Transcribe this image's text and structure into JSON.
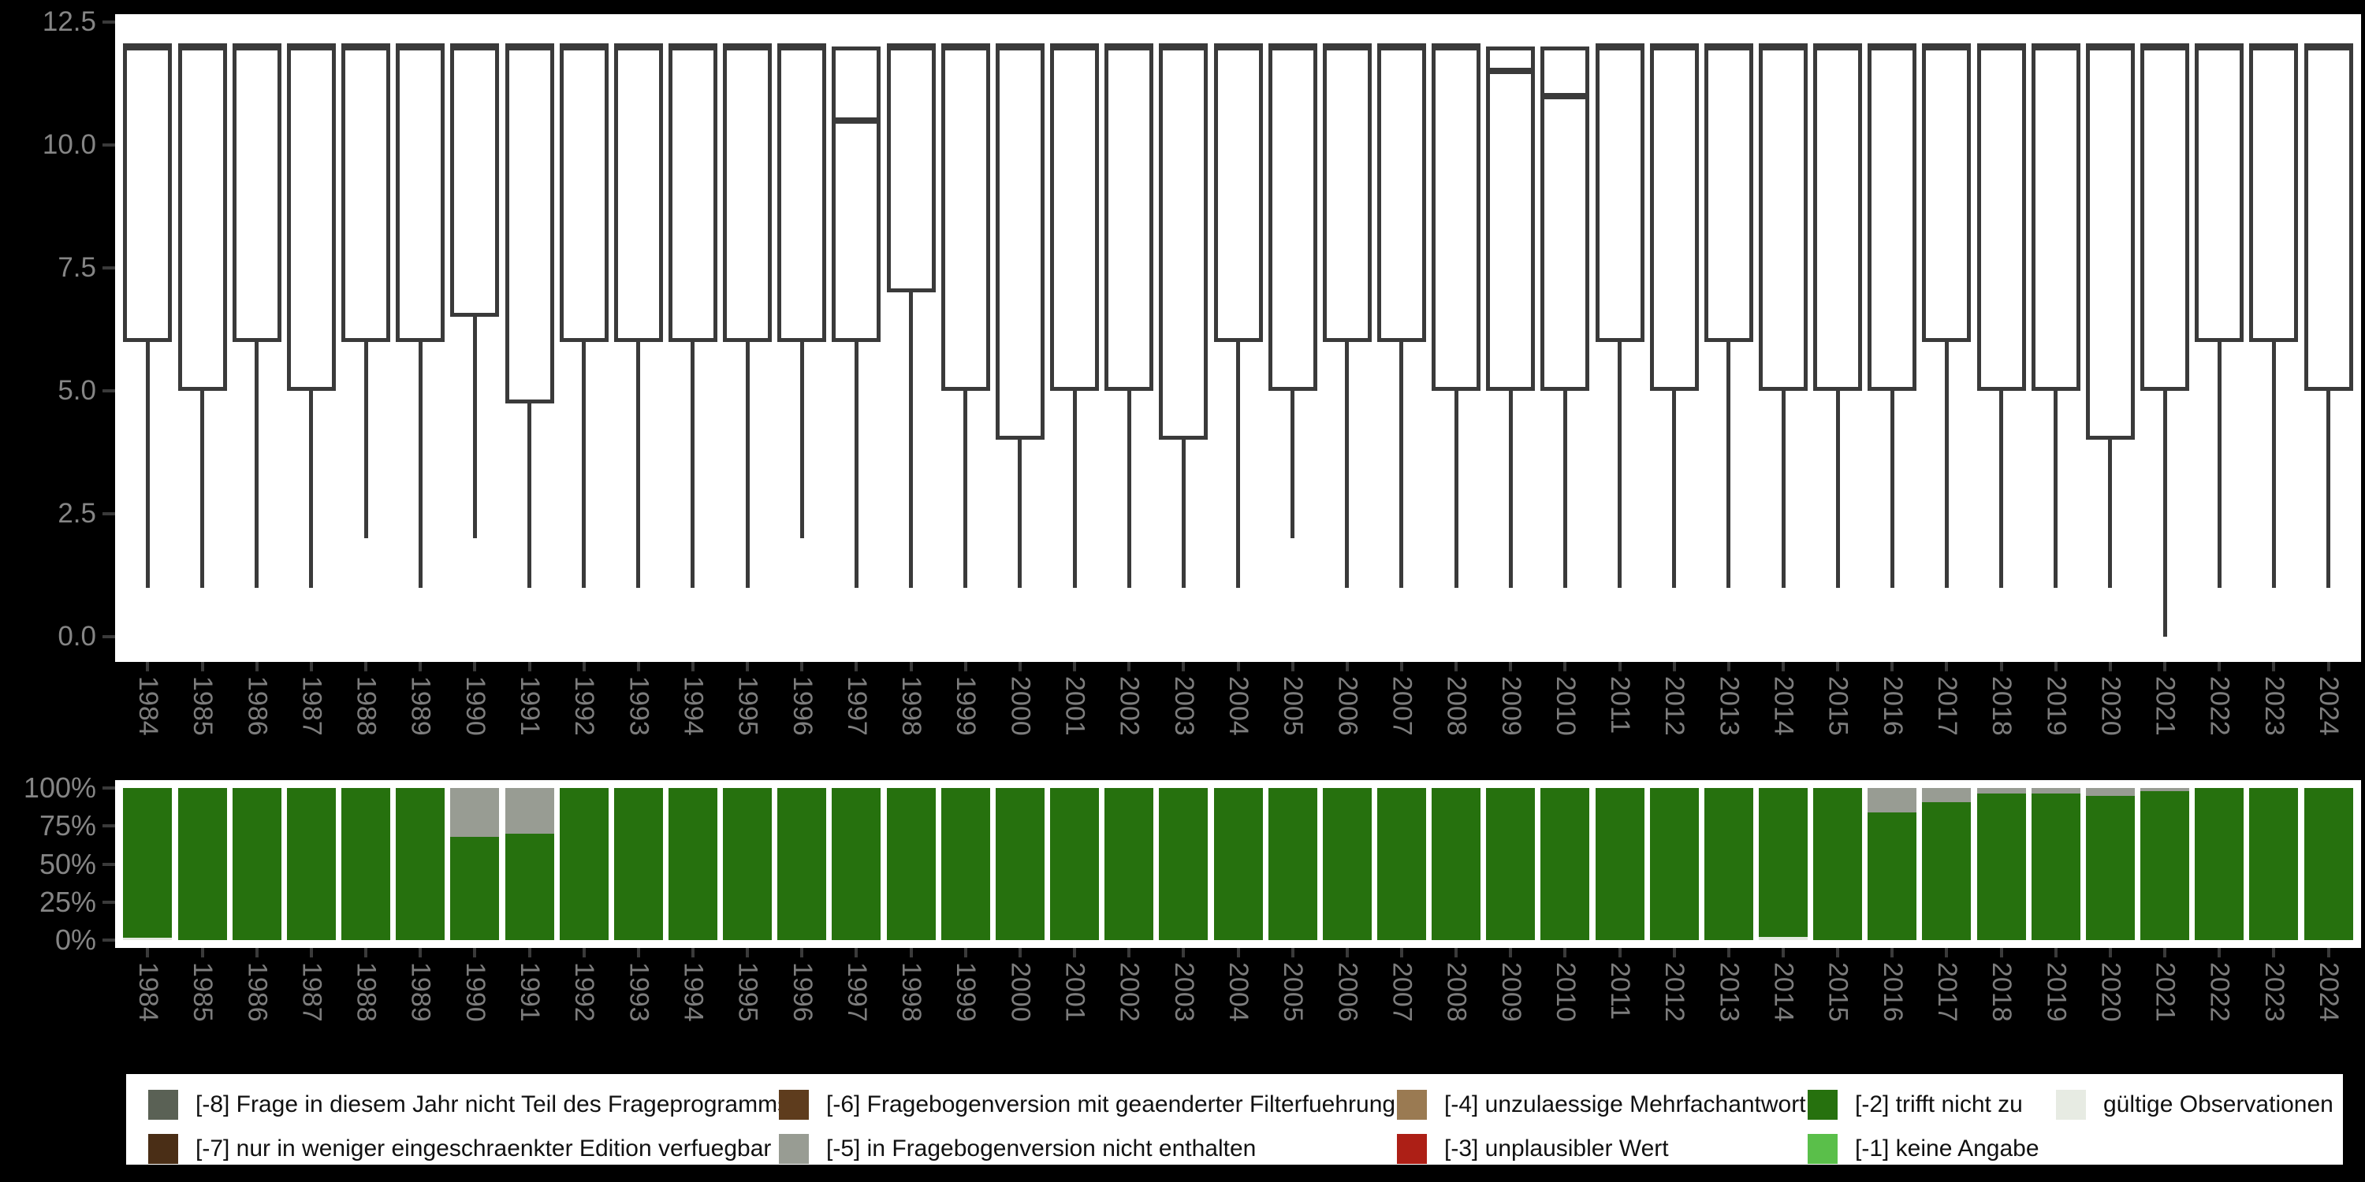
{
  "figure": {
    "background_color": "#000000",
    "panel_color": "#ffffff",
    "axis_text_color": "#858585",
    "tick_color": "#3a3a3a",
    "box_line_color": "#3a3a3a"
  },
  "chart_data": [
    {
      "name": "boxplot-distribution-by-year",
      "type": "boxplot",
      "title": "",
      "xlabel": "",
      "ylabel": "",
      "grid": false,
      "ylim": [
        0,
        12.5
      ],
      "y_ticks": [
        {
          "value": 12.5,
          "label": "12.5"
        },
        {
          "value": 10.0,
          "label": "10.0"
        },
        {
          "value": 7.5,
          "label": "7.5"
        },
        {
          "value": 5.0,
          "label": "5.0"
        },
        {
          "value": 2.5,
          "label": "2.5"
        },
        {
          "value": 0.0,
          "label": "0.0"
        }
      ],
      "categories": [
        "1984",
        "1985",
        "1986",
        "1987",
        "1988",
        "1989",
        "1990",
        "1991",
        "1992",
        "1993",
        "1994",
        "1995",
        "1996",
        "1997",
        "1998",
        "1999",
        "2000",
        "2001",
        "2002",
        "2003",
        "2004",
        "2005",
        "2006",
        "2007",
        "2008",
        "2009",
        "2010",
        "2011",
        "2012",
        "2013",
        "2014",
        "2015",
        "2016",
        "2017",
        "2018",
        "2019",
        "2020",
        "2021",
        "2022",
        "2023",
        "2024"
      ],
      "boxes": [
        {
          "year": "1984",
          "low": 1,
          "q1": 6,
          "median": 12,
          "q3": 12,
          "high": 12
        },
        {
          "year": "1985",
          "low": 1,
          "q1": 5,
          "median": 12,
          "q3": 12,
          "high": 12
        },
        {
          "year": "1986",
          "low": 1,
          "q1": 6,
          "median": 12,
          "q3": 12,
          "high": 12
        },
        {
          "year": "1987",
          "low": 1,
          "q1": 5,
          "median": 12,
          "q3": 12,
          "high": 12
        },
        {
          "year": "1988",
          "low": 2,
          "q1": 6,
          "median": 12,
          "q3": 12,
          "high": 12
        },
        {
          "year": "1989",
          "low": 1,
          "q1": 6,
          "median": 12,
          "q3": 12,
          "high": 12
        },
        {
          "year": "1990",
          "low": 2,
          "q1": 6.5,
          "median": 12,
          "q3": 12,
          "high": 12
        },
        {
          "year": "1991",
          "low": 1,
          "q1": 4.75,
          "median": 12,
          "q3": 12,
          "high": 12
        },
        {
          "year": "1992",
          "low": 1,
          "q1": 6,
          "median": 12,
          "q3": 12,
          "high": 12
        },
        {
          "year": "1993",
          "low": 1,
          "q1": 6,
          "median": 12,
          "q3": 12,
          "high": 12
        },
        {
          "year": "1994",
          "low": 1,
          "q1": 6,
          "median": 12,
          "q3": 12,
          "high": 12
        },
        {
          "year": "1995",
          "low": 1,
          "q1": 6,
          "median": 12,
          "q3": 12,
          "high": 12
        },
        {
          "year": "1996",
          "low": 2,
          "q1": 6,
          "median": 12,
          "q3": 12,
          "high": 12
        },
        {
          "year": "1997",
          "low": 1,
          "q1": 6,
          "median": 10.5,
          "q3": 12,
          "high": 12
        },
        {
          "year": "1998",
          "low": 1,
          "q1": 7,
          "median": 12,
          "q3": 12,
          "high": 12
        },
        {
          "year": "1999",
          "low": 1,
          "q1": 5,
          "median": 12,
          "q3": 12,
          "high": 12
        },
        {
          "year": "2000",
          "low": 1,
          "q1": 4,
          "median": 12,
          "q3": 12,
          "high": 12
        },
        {
          "year": "2001",
          "low": 1,
          "q1": 5,
          "median": 12,
          "q3": 12,
          "high": 12
        },
        {
          "year": "2002",
          "low": 1,
          "q1": 5,
          "median": 12,
          "q3": 12,
          "high": 12
        },
        {
          "year": "2003",
          "low": 1,
          "q1": 4,
          "median": 12,
          "q3": 12,
          "high": 12
        },
        {
          "year": "2004",
          "low": 1,
          "q1": 6,
          "median": 12,
          "q3": 12,
          "high": 12
        },
        {
          "year": "2005",
          "low": 2,
          "q1": 5,
          "median": 12,
          "q3": 12,
          "high": 12
        },
        {
          "year": "2006",
          "low": 1,
          "q1": 6,
          "median": 12,
          "q3": 12,
          "high": 12
        },
        {
          "year": "2007",
          "low": 1,
          "q1": 6,
          "median": 12,
          "q3": 12,
          "high": 12
        },
        {
          "year": "2008",
          "low": 1,
          "q1": 5,
          "median": 12,
          "q3": 12,
          "high": 12
        },
        {
          "year": "2009",
          "low": 1,
          "q1": 5,
          "median": 11.5,
          "q3": 12,
          "high": 12
        },
        {
          "year": "2010",
          "low": 1,
          "q1": 5,
          "median": 11,
          "q3": 12,
          "high": 12
        },
        {
          "year": "2011",
          "low": 1,
          "q1": 6,
          "median": 12,
          "q3": 12,
          "high": 12
        },
        {
          "year": "2012",
          "low": 1,
          "q1": 5,
          "median": 12,
          "q3": 12,
          "high": 12
        },
        {
          "year": "2013",
          "low": 1,
          "q1": 6,
          "median": 12,
          "q3": 12,
          "high": 12
        },
        {
          "year": "2014",
          "low": 1,
          "q1": 5,
          "median": 12,
          "q3": 12,
          "high": 12
        },
        {
          "year": "2015",
          "low": 1,
          "q1": 5,
          "median": 12,
          "q3": 12,
          "high": 12
        },
        {
          "year": "2016",
          "low": 1,
          "q1": 5,
          "median": 12,
          "q3": 12,
          "high": 12
        },
        {
          "year": "2017",
          "low": 1,
          "q1": 6,
          "median": 12,
          "q3": 12,
          "high": 12
        },
        {
          "year": "2018",
          "low": 1,
          "q1": 5,
          "median": 12,
          "q3": 12,
          "high": 12
        },
        {
          "year": "2019",
          "low": 1,
          "q1": 5,
          "median": 12,
          "q3": 12,
          "high": 12
        },
        {
          "year": "2020",
          "low": 1,
          "q1": 4,
          "median": 12,
          "q3": 12,
          "high": 12
        },
        {
          "year": "2021",
          "low": 0,
          "q1": 5,
          "median": 12,
          "q3": 12,
          "high": 12
        },
        {
          "year": "2022",
          "low": 1,
          "q1": 6,
          "median": 12,
          "q3": 12,
          "high": 12
        },
        {
          "year": "2023",
          "low": 1,
          "q1": 6,
          "median": 12,
          "q3": 12,
          "high": 12
        },
        {
          "year": "2024",
          "low": 1,
          "q1": 5,
          "median": 12,
          "q3": 12,
          "high": 12
        }
      ]
    },
    {
      "name": "missing-code-shares-by-year",
      "type": "stacked_bar_percent",
      "title": "",
      "xlabel": "",
      "ylabel": "",
      "grid": false,
      "ylim": [
        0,
        100
      ],
      "y_ticks": [
        {
          "value": 100,
          "label": "100%"
        },
        {
          "value": 75,
          "label": "75%"
        },
        {
          "value": 50,
          "label": "50%"
        },
        {
          "value": 25,
          "label": "25%"
        },
        {
          "value": 0,
          "label": "0%"
        }
      ],
      "categories": [
        "1984",
        "1985",
        "1986",
        "1987",
        "1988",
        "1989",
        "1990",
        "1991",
        "1992",
        "1993",
        "1994",
        "1995",
        "1996",
        "1997",
        "1998",
        "1999",
        "2000",
        "2001",
        "2002",
        "2003",
        "2004",
        "2005",
        "2006",
        "2007",
        "2008",
        "2009",
        "2010",
        "2011",
        "2012",
        "2013",
        "2014",
        "2015",
        "2016",
        "2017",
        "2018",
        "2019",
        "2020",
        "2021",
        "2022",
        "2023",
        "2024"
      ],
      "stack_order_bottom_to_top": [
        "gueltige Observationen",
        "[-2] trifft nicht zu",
        "[-5] in Fragebogenversion nicht enthalten"
      ],
      "series": [
        {
          "key": "valid",
          "label": "gültige Observationen",
          "color": "#e3e8df",
          "values": [
            1.5,
            0,
            0,
            0,
            0,
            0,
            0,
            0,
            0,
            0,
            0,
            0,
            0,
            0,
            0,
            0,
            0,
            0,
            0,
            0,
            0,
            0,
            0,
            0,
            0,
            0,
            0,
            0,
            0,
            0,
            2,
            0,
            0,
            0,
            0,
            0,
            0,
            0,
            0,
            0,
            0
          ]
        },
        {
          "key": "code_-2",
          "label": "[-2] trifft nicht zu",
          "color": "#26710e",
          "values": [
            98.5,
            100,
            100,
            100,
            100,
            100,
            68,
            70,
            100,
            100,
            100,
            100,
            100,
            100,
            100,
            100,
            100,
            100,
            100,
            100,
            100,
            100,
            100,
            100,
            100,
            100,
            100,
            100,
            100,
            100,
            98,
            100,
            84,
            91,
            96.5,
            96.5,
            95,
            98,
            100,
            100,
            100
          ]
        },
        {
          "key": "code_-5",
          "label": "[-5] in Fragebogenversion nicht enthalten",
          "color": "#989c93",
          "values": [
            0,
            0,
            0,
            0,
            0,
            0,
            32,
            30,
            0,
            0,
            0,
            0,
            0,
            0,
            0,
            0,
            0,
            0,
            0,
            0,
            0,
            0,
            0,
            0,
            0,
            0,
            0,
            0,
            0,
            0,
            0,
            0,
            16,
            9,
            3.5,
            3.5,
            5,
            2,
            0,
            0,
            0
          ]
        }
      ]
    }
  ],
  "legend": {
    "columns": [
      {
        "items": [
          {
            "code": "-8",
            "label": "[-8] Frage in diesem Jahr nicht Teil des Frageprogramms",
            "color": "#5a6155"
          },
          {
            "code": "-7",
            "label": "[-7] nur in weniger eingeschraenkter Edition verfuegbar",
            "color": "#4a2e16"
          }
        ]
      },
      {
        "items": [
          {
            "code": "-6",
            "label": "[-6] Fragebogenversion mit geaenderter Filterfuehrung",
            "color": "#5e3c1d"
          },
          {
            "code": "-5",
            "label": "[-5] in Fragebogenversion nicht enthalten",
            "color": "#989c93"
          }
        ]
      },
      {
        "items": [
          {
            "code": "-4",
            "label": "[-4] unzulaessige Mehrfachantwort",
            "color": "#9a7a52"
          },
          {
            "code": "-3",
            "label": "[-3] unplausibler Wert",
            "color": "#ad1f16"
          }
        ]
      },
      {
        "items": [
          {
            "code": "-2",
            "label": "[-2] trifft nicht zu",
            "color": "#26710e"
          },
          {
            "code": "-1",
            "label": "[-1] keine Angabe",
            "color": "#5abf4a"
          }
        ]
      },
      {
        "items": [
          {
            "code": "valid",
            "label": "gültige Observationen",
            "color": "#e7ebe3"
          }
        ]
      }
    ]
  }
}
